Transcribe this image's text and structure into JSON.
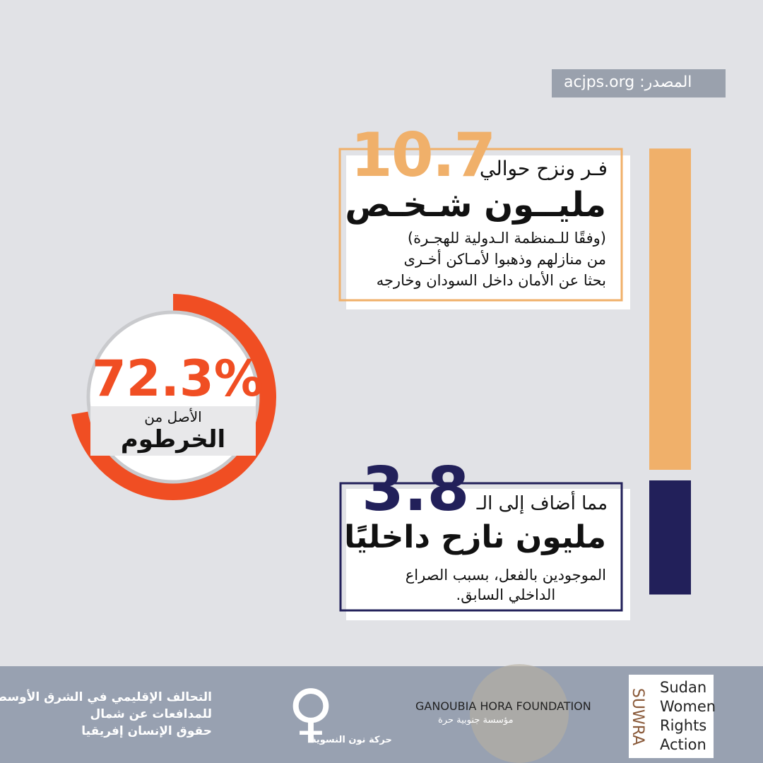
{
  "source": "المصدر: acjps.org",
  "donut": {
    "percent": {
      "value": 72.3,
      "label": "72.3%"
    },
    "line1": "الأصل من",
    "line2": "الخرطوم"
  },
  "stat1": {
    "value": 10.7,
    "prefix": "فـر ونزح حوالي",
    "headline": "مليــون شـخـص",
    "lines": [
      "(وفقًا للـمنظمة الـدولية للهجـرة)",
      "من منازلهم وذهبوا لأمـاكن أخـرى",
      "بحثا عن الأمان داخل السودان وخارجه"
    ]
  },
  "stat2": {
    "value": 3.8,
    "prefix": "مما أضاف إلى الـ",
    "headline": "مليون نازح داخليًا",
    "lines": [
      "الموجودين بالفعل، بسبب الصراع",
      "الداخلي السابق."
    ]
  },
  "footer": {
    "coalition": [
      "التحالف الإقليمي في الشرق الأوسط و",
      "للمدافعات عن شمال",
      "حقوق الإنسان إفريقيا"
    ],
    "noon": "حركة نون النسوية",
    "ganoubia_en": "GANOUBIA HORA FOUNDATION",
    "ganoubia_ar": "مؤسسة جنوبية حرة",
    "suwra": "SUWRA",
    "suwra_name": [
      "Sudan",
      "Women",
      "Rights",
      "Action"
    ]
  }
}
